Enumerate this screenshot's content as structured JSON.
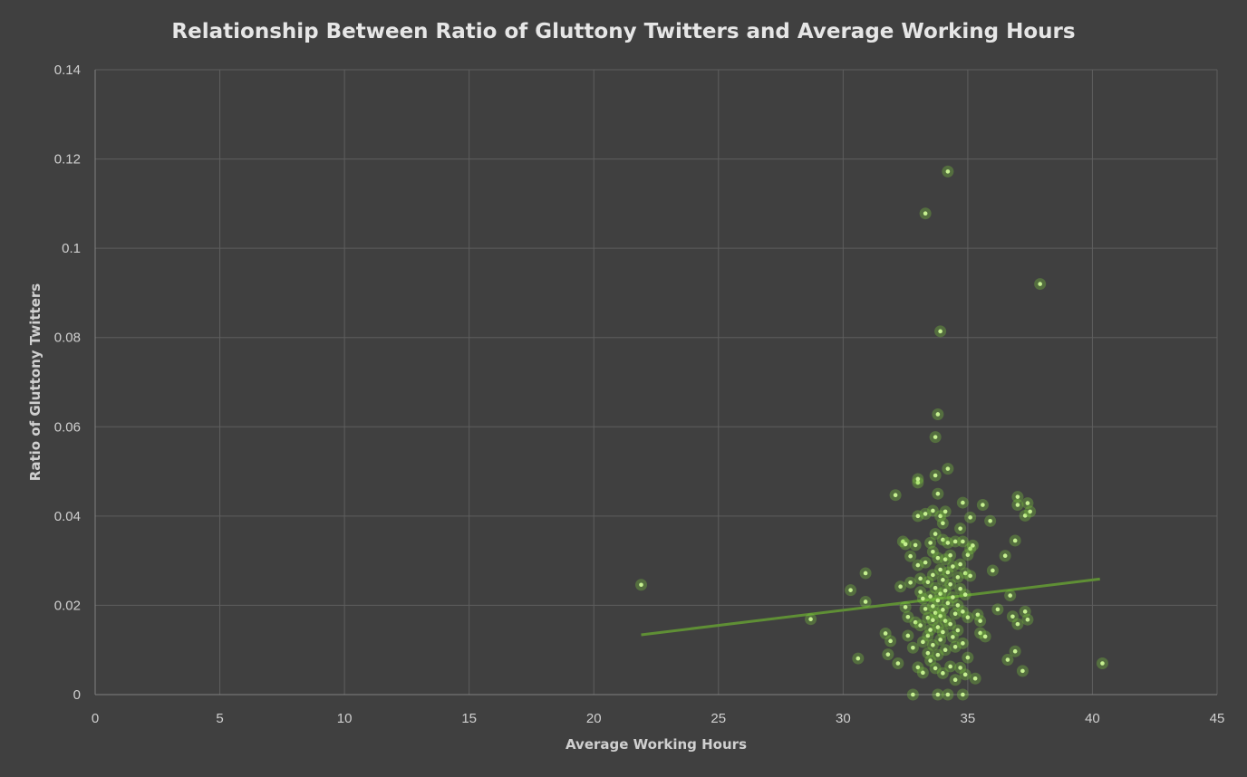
{
  "chart_data": {
    "type": "scatter",
    "title": "Relationship Between Ratio of Gluttony Twitters and Average Working Hours",
    "xlabel": "Average Working Hours",
    "ylabel": "Ratio of Gluttony Twitters",
    "xlim": [
      0,
      45
    ],
    "ylim": [
      0,
      0.14
    ],
    "x_ticks": [
      "0",
      "5",
      "10",
      "15",
      "20",
      "25",
      "30",
      "35",
      "40",
      "45"
    ],
    "y_ticks": [
      "0",
      "0.02",
      "0.04",
      "0.06",
      "0.08",
      "0.1",
      "0.12",
      "0.14"
    ],
    "grid": true,
    "legend": "none",
    "point_color": "#8fd84e",
    "trendline": {
      "x": [
        21.9,
        40.3
      ],
      "y": [
        0.0134,
        0.0259
      ],
      "color": "#5f8f35"
    },
    "points": [
      [
        21.9,
        0.0246
      ],
      [
        28.7,
        0.0169
      ],
      [
        30.3,
        0.0234
      ],
      [
        30.6,
        0.0081
      ],
      [
        30.9,
        0.0272
      ],
      [
        30.9,
        0.0208
      ],
      [
        31.7,
        0.0137
      ],
      [
        31.8,
        0.009
      ],
      [
        31.9,
        0.012
      ],
      [
        32.1,
        0.0447
      ],
      [
        32.2,
        0.007
      ],
      [
        32.3,
        0.0242
      ],
      [
        32.4,
        0.0343
      ],
      [
        32.5,
        0.0337
      ],
      [
        32.5,
        0.0196
      ],
      [
        32.6,
        0.0174
      ],
      [
        32.6,
        0.0132
      ],
      [
        32.7,
        0.031
      ],
      [
        32.7,
        0.0251
      ],
      [
        32.8,
        0.0105
      ],
      [
        32.8,
        0.0
      ],
      [
        32.9,
        0.0335
      ],
      [
        32.9,
        0.0162
      ],
      [
        33.0,
        0.04
      ],
      [
        33.0,
        0.029
      ],
      [
        33.0,
        0.0061
      ],
      [
        33.0,
        0.0475
      ],
      [
        33.0,
        0.0483
      ],
      [
        33.1,
        0.026
      ],
      [
        33.1,
        0.023
      ],
      [
        33.1,
        0.0155
      ],
      [
        33.2,
        0.0215
      ],
      [
        33.2,
        0.0118
      ],
      [
        33.2,
        0.0049
      ],
      [
        33.3,
        0.1078
      ],
      [
        33.3,
        0.0405
      ],
      [
        33.3,
        0.0296
      ],
      [
        33.3,
        0.0192
      ],
      [
        33.4,
        0.0252
      ],
      [
        33.4,
        0.0172
      ],
      [
        33.4,
        0.0132
      ],
      [
        33.4,
        0.0093
      ],
      [
        33.5,
        0.034
      ],
      [
        33.5,
        0.022
      ],
      [
        33.5,
        0.0145
      ],
      [
        33.5,
        0.0076
      ],
      [
        33.6,
        0.0412
      ],
      [
        33.6,
        0.032
      ],
      [
        33.6,
        0.0268
      ],
      [
        33.6,
        0.0198
      ],
      [
        33.6,
        0.0167
      ],
      [
        33.6,
        0.0111
      ],
      [
        33.7,
        0.0577
      ],
      [
        33.7,
        0.0491
      ],
      [
        33.7,
        0.036
      ],
      [
        33.7,
        0.0239
      ],
      [
        33.7,
        0.0183
      ],
      [
        33.7,
        0.0059
      ],
      [
        33.8,
        0.0628
      ],
      [
        33.8,
        0.045
      ],
      [
        33.8,
        0.0306
      ],
      [
        33.8,
        0.0211
      ],
      [
        33.8,
        0.0151
      ],
      [
        33.8,
        0.0089
      ],
      [
        33.8,
        0.0
      ],
      [
        33.9,
        0.0814
      ],
      [
        33.9,
        0.04
      ],
      [
        33.9,
        0.028
      ],
      [
        33.9,
        0.0226
      ],
      [
        33.9,
        0.0176
      ],
      [
        33.9,
        0.0123
      ],
      [
        34.0,
        0.0384
      ],
      [
        34.0,
        0.0347
      ],
      [
        34.0,
        0.0257
      ],
      [
        34.0,
        0.019
      ],
      [
        34.0,
        0.014
      ],
      [
        34.0,
        0.0048
      ],
      [
        34.1,
        0.041
      ],
      [
        34.1,
        0.0303
      ],
      [
        34.1,
        0.0233
      ],
      [
        34.1,
        0.0165
      ],
      [
        34.1,
        0.01
      ],
      [
        34.2,
        0.1172
      ],
      [
        34.2,
        0.0506
      ],
      [
        34.2,
        0.034
      ],
      [
        34.2,
        0.0274
      ],
      [
        34.2,
        0.0205
      ],
      [
        34.2,
        0.0
      ],
      [
        34.3,
        0.0312
      ],
      [
        34.3,
        0.0247
      ],
      [
        34.3,
        0.0158
      ],
      [
        34.3,
        0.0063
      ],
      [
        34.4,
        0.0287
      ],
      [
        34.4,
        0.0218
      ],
      [
        34.4,
        0.0129
      ],
      [
        34.5,
        0.0343
      ],
      [
        34.5,
        0.0181
      ],
      [
        34.5,
        0.0107
      ],
      [
        34.5,
        0.0033
      ],
      [
        34.6,
        0.0263
      ],
      [
        34.6,
        0.02
      ],
      [
        34.6,
        0.0144
      ],
      [
        34.7,
        0.0372
      ],
      [
        34.7,
        0.0292
      ],
      [
        34.7,
        0.0237
      ],
      [
        34.7,
        0.006
      ],
      [
        34.8,
        0.043
      ],
      [
        34.8,
        0.0343
      ],
      [
        34.8,
        0.0186
      ],
      [
        34.8,
        0.0115
      ],
      [
        34.8,
        0.0
      ],
      [
        34.9,
        0.0272
      ],
      [
        34.9,
        0.0224
      ],
      [
        34.9,
        0.0045
      ],
      [
        35.0,
        0.0313
      ],
      [
        35.0,
        0.0173
      ],
      [
        35.0,
        0.0083
      ],
      [
        35.1,
        0.0397
      ],
      [
        35.1,
        0.0327
      ],
      [
        35.1,
        0.0266
      ],
      [
        35.2,
        0.0334
      ],
      [
        35.3,
        0.0036
      ],
      [
        35.4,
        0.0179
      ],
      [
        35.5,
        0.0165
      ],
      [
        35.5,
        0.0138
      ],
      [
        35.6,
        0.0425
      ],
      [
        35.7,
        0.013
      ],
      [
        35.9,
        0.0389
      ],
      [
        36.0,
        0.0278
      ],
      [
        36.2,
        0.0191
      ],
      [
        36.5,
        0.0311
      ],
      [
        36.6,
        0.0078
      ],
      [
        36.7,
        0.0222
      ],
      [
        36.8,
        0.0175
      ],
      [
        36.9,
        0.0097
      ],
      [
        36.9,
        0.0345
      ],
      [
        37.0,
        0.0443
      ],
      [
        37.0,
        0.0425
      ],
      [
        37.0,
        0.0158
      ],
      [
        37.2,
        0.0053
      ],
      [
        37.3,
        0.0401
      ],
      [
        37.3,
        0.0186
      ],
      [
        37.4,
        0.0168
      ],
      [
        37.4,
        0.0429
      ],
      [
        37.5,
        0.041
      ],
      [
        37.9,
        0.092
      ],
      [
        40.4,
        0.007
      ]
    ]
  }
}
